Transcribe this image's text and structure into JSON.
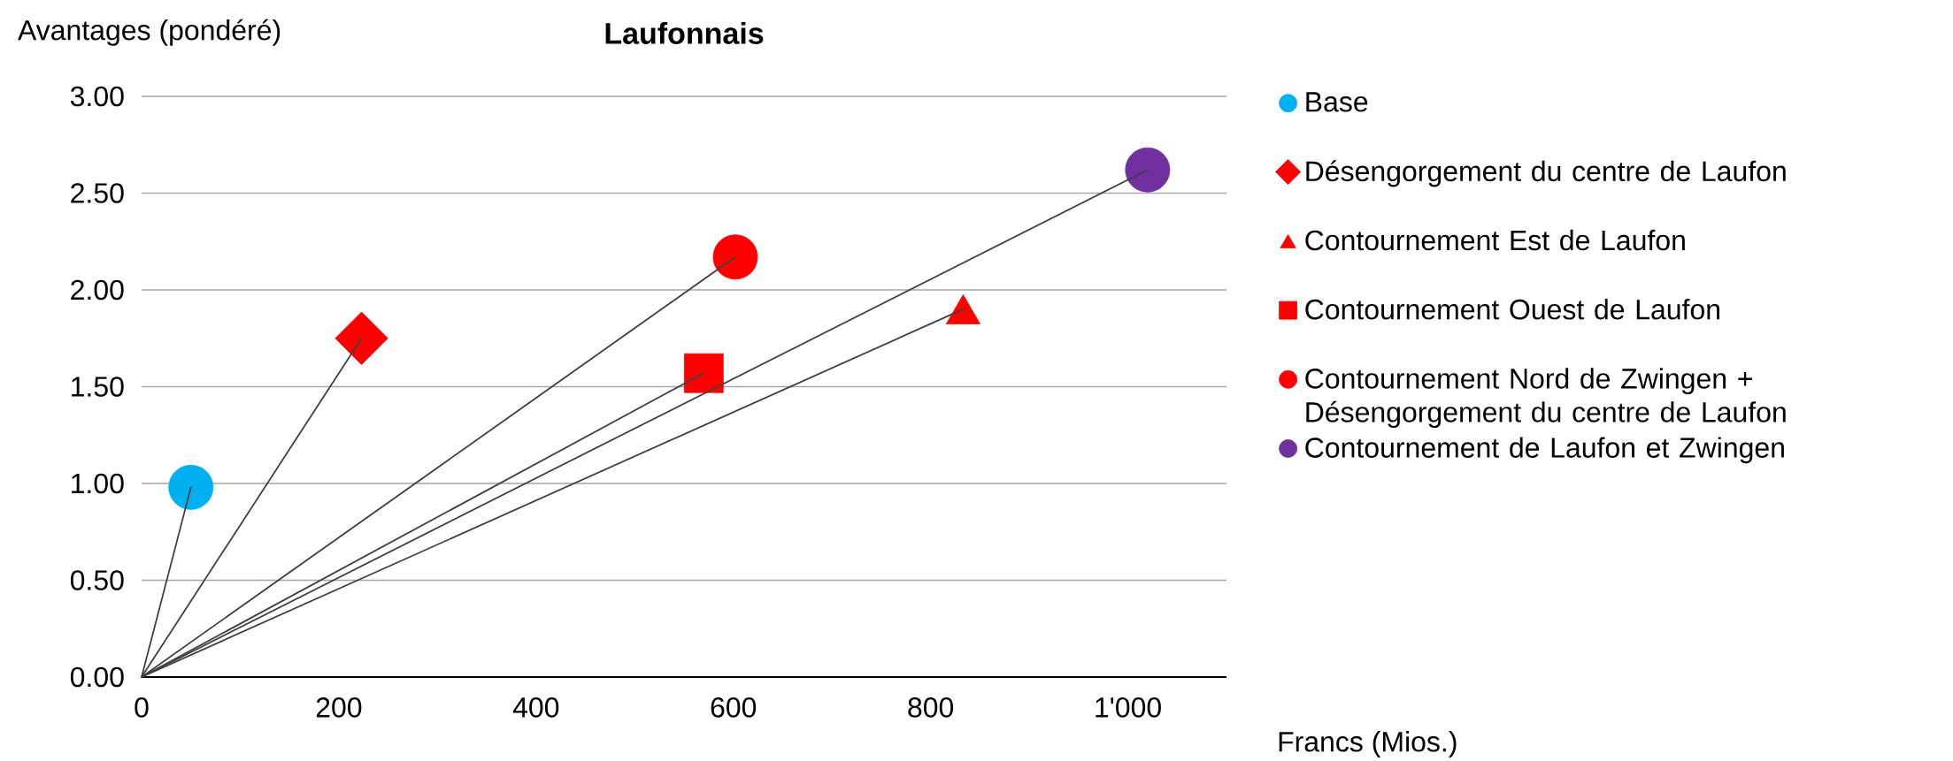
{
  "chart_data": {
    "type": "scatter",
    "title": "Laufonnais",
    "xlabel": "Francs (Mios.)",
    "ylabel": "Avantages (pondéré)",
    "xlim": [
      0,
      1100
    ],
    "ylim": [
      0,
      3
    ],
    "xticks": [
      0,
      200,
      400,
      600,
      800,
      {
        "value": 1000,
        "label": "1'000"
      }
    ],
    "yticks": [
      {
        "value": 0,
        "label": "0.00"
      },
      {
        "value": 0.5,
        "label": "0.50"
      },
      {
        "value": 1,
        "label": "1.00"
      },
      {
        "value": 1.5,
        "label": "1.50"
      },
      {
        "value": 2,
        "label": "2.00"
      },
      {
        "value": 2.5,
        "label": "2.50"
      },
      {
        "value": 3,
        "label": "3.00"
      }
    ],
    "grid": "y",
    "legend": "right",
    "series": [
      {
        "type": "line",
        "color": "#404040",
        "marker": "none",
        "x": [
          0,
          50
        ],
        "values": [
          0,
          0.98
        ]
      },
      {
        "type": "line",
        "color": "#404040",
        "marker": "none",
        "x": [
          0,
          223
        ],
        "values": [
          0,
          1.75
        ]
      },
      {
        "type": "line",
        "color": "#404040",
        "marker": "none",
        "x": [
          0,
          833
        ],
        "values": [
          0,
          1.9
        ]
      },
      {
        "type": "line",
        "color": "#404040",
        "marker": "none",
        "x": [
          0,
          570
        ],
        "values": [
          0,
          1.57
        ]
      },
      {
        "type": "line",
        "color": "#404040",
        "marker": "none",
        "x": [
          0,
          602
        ],
        "values": [
          0,
          2.17
        ]
      },
      {
        "type": "line",
        "color": "#404040",
        "marker": "none",
        "x": [
          0,
          1020
        ],
        "values": [
          0,
          2.62
        ]
      },
      {
        "type": "scatter",
        "name": "Base",
        "color": "#00b0f0",
        "marker": "circle",
        "x": [
          50
        ],
        "values": [
          0.98
        ]
      },
      {
        "type": "scatter",
        "name": "Désengorgement du centre de Laufon",
        "color": "#ff0000",
        "marker": "diamond",
        "x": [
          223
        ],
        "values": [
          1.75
        ]
      },
      {
        "type": "scatter",
        "name": "Contournement Est de Laufon",
        "color": "#ff0000",
        "marker": "triangle",
        "x": [
          833
        ],
        "values": [
          1.9
        ]
      },
      {
        "type": "scatter",
        "name": "Contournement Ouest de Laufon",
        "color": "#ff0000",
        "marker": "square",
        "x": [
          570
        ],
        "values": [
          1.57
        ]
      },
      {
        "type": "scatter",
        "name": "Contournement Nord de Zwingen + Désengorgement du centre de Laufon",
        "color": "#ff0000",
        "marker": "circle",
        "x": [
          602
        ],
        "values": [
          2.17
        ]
      },
      {
        "type": "scatter",
        "name": "Contournement de Laufon et Zwingen",
        "color": "#7030a0",
        "marker": "circle",
        "x": [
          1020
        ],
        "values": [
          2.62
        ]
      }
    ]
  }
}
